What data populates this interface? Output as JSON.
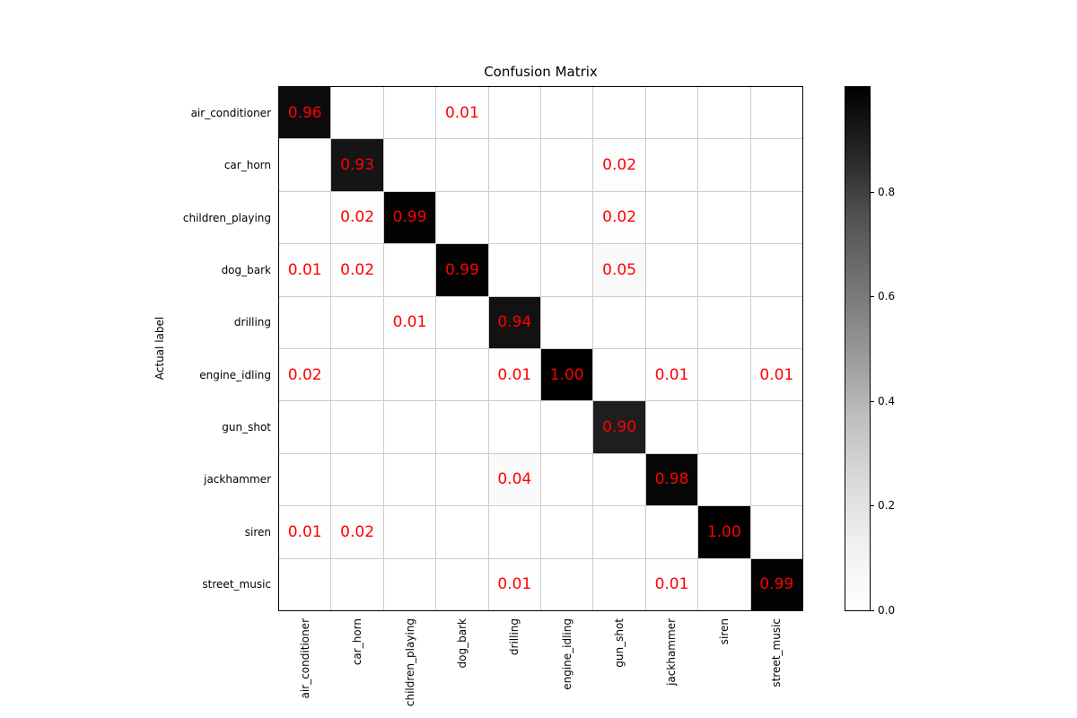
{
  "chart_data": {
    "type": "heatmap",
    "title": "Confusion Matrix",
    "xlabel": "",
    "ylabel": "Actual label",
    "categories": [
      "air_conditioner",
      "car_horn",
      "children_playing",
      "dog_bark",
      "drilling",
      "engine_idling",
      "gun_shot",
      "jackhammer",
      "siren",
      "street_music"
    ],
    "matrix": [
      [
        0.96,
        0,
        0,
        0.01,
        0,
        0,
        0,
        0,
        0,
        0
      ],
      [
        0,
        0.93,
        0,
        0,
        0,
        0,
        0.02,
        0,
        0,
        0
      ],
      [
        0,
        0.02,
        0.99,
        0,
        0,
        0,
        0.02,
        0,
        0,
        0
      ],
      [
        0.01,
        0.02,
        0,
        0.99,
        0,
        0,
        0.05,
        0,
        0,
        0
      ],
      [
        0,
        0,
        0.01,
        0,
        0.94,
        0,
        0,
        0,
        0,
        0
      ],
      [
        0.02,
        0,
        0,
        0,
        0.01,
        1.0,
        0,
        0.01,
        0,
        0.01
      ],
      [
        0,
        0,
        0,
        0,
        0,
        0,
        0.9,
        0,
        0,
        0
      ],
      [
        0,
        0,
        0,
        0,
        0.04,
        0,
        0,
        0.98,
        0,
        0
      ],
      [
        0.01,
        0.02,
        0,
        0,
        0,
        0,
        0,
        0,
        1.0,
        0
      ],
      [
        0,
        0,
        0,
        0,
        0.01,
        0,
        0,
        0.01,
        0,
        0.99
      ]
    ],
    "vmin": 0.0,
    "vmax": 1.0,
    "colormap": "Greys",
    "colorbar_ticks": [
      "0.0",
      "0.2",
      "0.4",
      "0.6",
      "0.8"
    ],
    "grid": true,
    "legend_position": "right-colorbar"
  },
  "colors": {
    "value_text": "#ff0000",
    "grid_line": "#cccccc",
    "axis_border": "#000000",
    "background": "#ffffff"
  }
}
